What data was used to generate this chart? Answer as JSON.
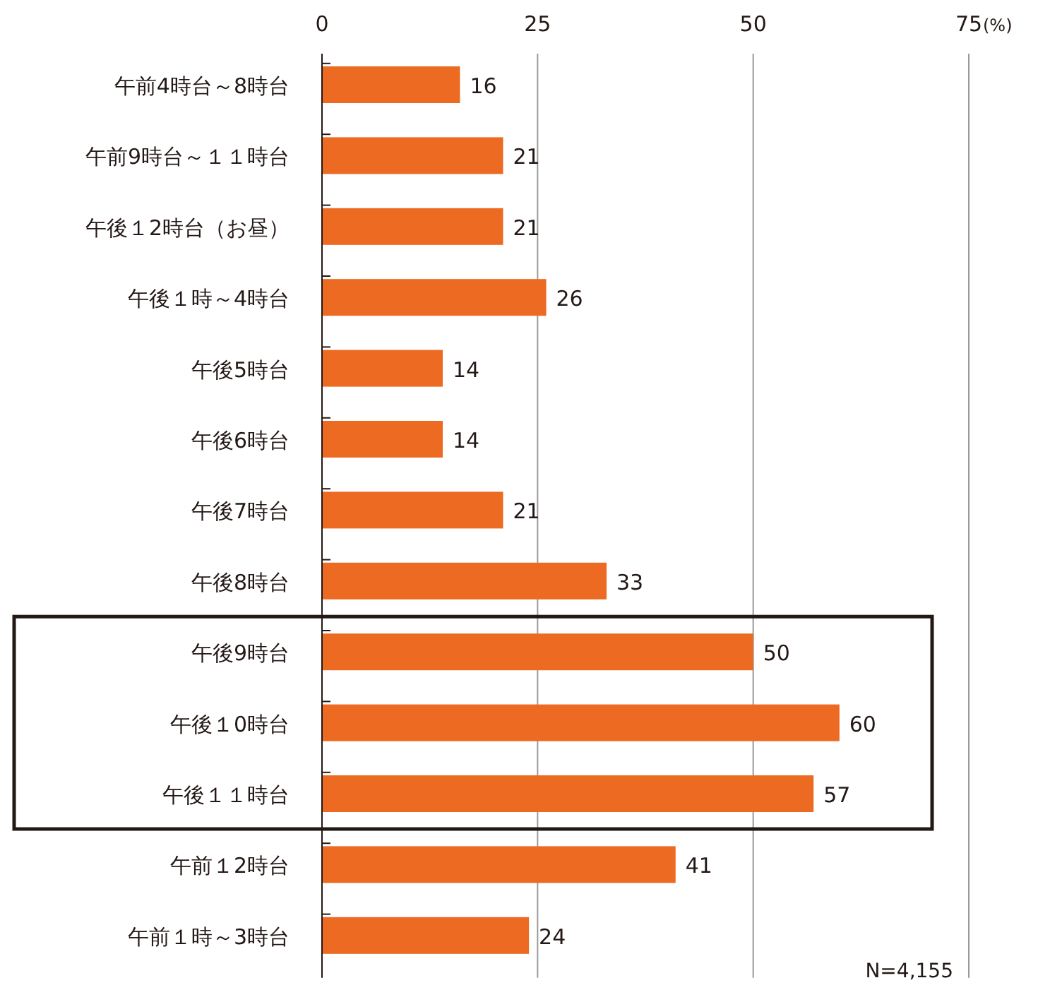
{
  "chart_data": {
    "type": "bar",
    "orientation": "horizontal",
    "xlabel": "(%)",
    "categories": [
      "午前4時台～8時台",
      "午前9時台～１１時台",
      "午後１2時台（お昼）",
      "午後１時～4時台",
      "午後5時台",
      "午後6時台",
      "午後7時台",
      "午後8時台",
      "午後9時台",
      "午後１0時台",
      "午後１１時台",
      "午前１2時台",
      "午前１時～3時台"
    ],
    "values": [
      16,
      21,
      21,
      26,
      14,
      14,
      21,
      33,
      50,
      60,
      57,
      41,
      24
    ],
    "color": "#ec6a22",
    "xlim": [
      0,
      75
    ],
    "xticks": [
      0,
      25,
      50,
      75
    ],
    "grid": "x",
    "data_labels": true,
    "annotations": [
      "N=4,155"
    ]
  }
}
